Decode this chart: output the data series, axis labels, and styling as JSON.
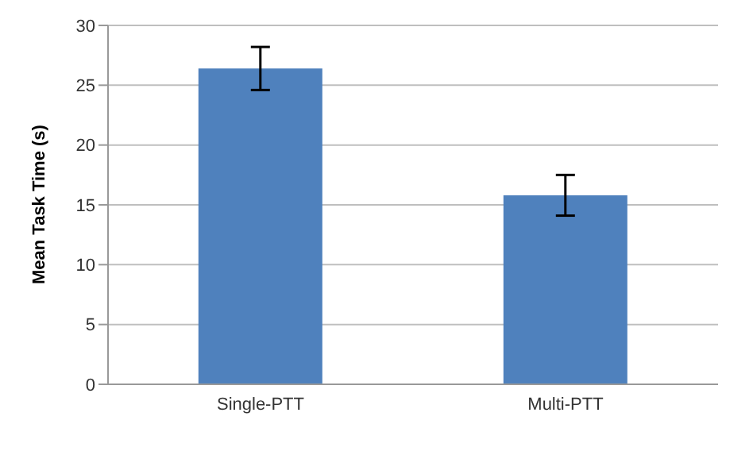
{
  "chart_data": {
    "type": "bar",
    "ylabel": "Mean Task Time (s)",
    "categories": [
      "Single-PTT",
      "Multi-PTT"
    ],
    "values": [
      26.4,
      15.8
    ],
    "errors": [
      1.8,
      1.7
    ],
    "color": "#4f81bd",
    "ylim": [
      0,
      30
    ],
    "yticks": [
      0,
      5,
      10,
      15,
      20,
      25,
      30
    ],
    "grid": "y"
  }
}
